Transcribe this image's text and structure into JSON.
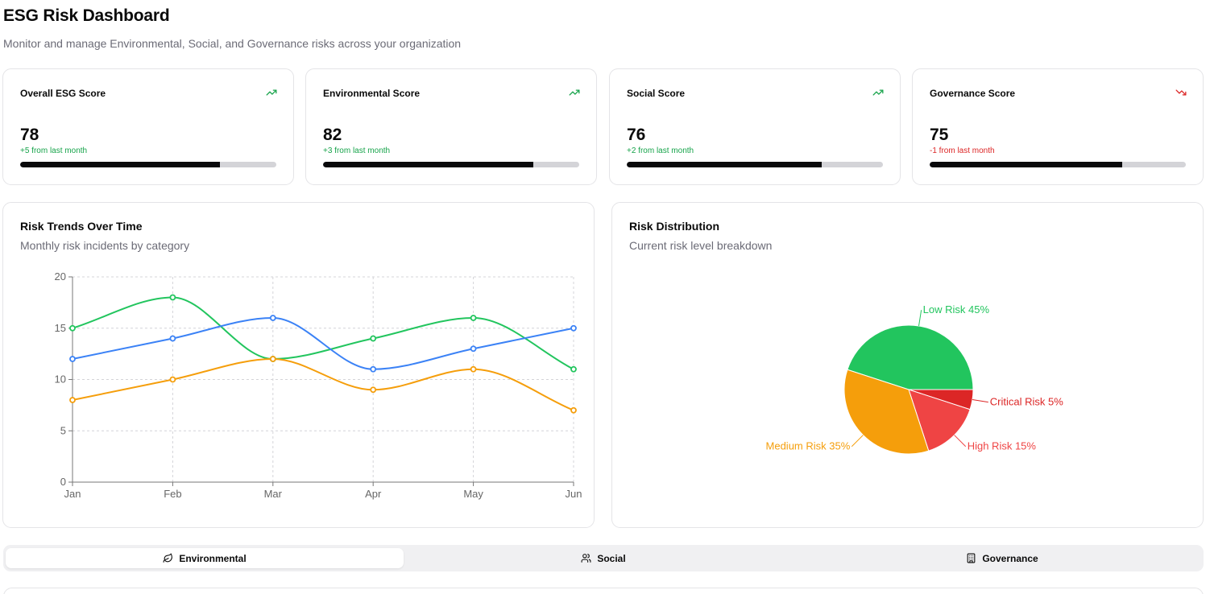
{
  "header": {
    "title": "ESG Risk Dashboard",
    "subtitle": "Monitor and manage Environmental, Social, and Governance risks across your organization"
  },
  "score_cards": [
    {
      "label": "Overall ESG Score",
      "value": "78",
      "change": "+5 from last month",
      "trend": "up",
      "progress": 0.78
    },
    {
      "label": "Environmental Score",
      "value": "82",
      "change": "+3 from last month",
      "trend": "up",
      "progress": 0.82
    },
    {
      "label": "Social Score",
      "value": "76",
      "change": "+2 from last month",
      "trend": "up",
      "progress": 0.76
    },
    {
      "label": "Governance Score",
      "value": "75",
      "change": "-1 from last month",
      "trend": "down",
      "progress": 0.75
    }
  ],
  "trends": {
    "title": "Risk Trends Over Time",
    "subtitle": "Monthly risk incidents by category"
  },
  "distribution": {
    "title": "Risk Distribution",
    "subtitle": "Current risk level breakdown"
  },
  "tabs": [
    {
      "label": "Environmental",
      "icon": "leaf-icon",
      "active": true
    },
    {
      "label": "Social",
      "icon": "users-icon",
      "active": false
    },
    {
      "label": "Governance",
      "icon": "building-icon",
      "active": false
    }
  ],
  "colors": {
    "green": "#22c55e",
    "blue": "#3b82f6",
    "orange": "#f59e0b",
    "red": "#ef4444",
    "dark_red": "#dc2626"
  },
  "chart_data": [
    {
      "type": "line",
      "x": [
        "Jan",
        "Feb",
        "Mar",
        "Apr",
        "May",
        "Jun"
      ],
      "ylim": [
        0,
        20
      ],
      "yticks": [
        0,
        5,
        10,
        15,
        20
      ],
      "grid": true,
      "series": [
        {
          "color": "#22c55e",
          "values": [
            15,
            18,
            12,
            14,
            16,
            11
          ]
        },
        {
          "color": "#3b82f6",
          "values": [
            12,
            14,
            16,
            11,
            13,
            15
          ]
        },
        {
          "color": "#f59e0b",
          "values": [
            8,
            10,
            12,
            9,
            11,
            7
          ]
        }
      ]
    },
    {
      "type": "pie",
      "slices": [
        {
          "label": "Low Risk",
          "value": 45,
          "color": "#22c55e",
          "text": "Low Risk 45%"
        },
        {
          "label": "Critical Risk",
          "value": 5,
          "color": "#dc2626",
          "text": "Critical Risk 5%"
        },
        {
          "label": "High Risk",
          "value": 15,
          "color": "#ef4444",
          "text": "High Risk 15%"
        },
        {
          "label": "Medium Risk",
          "value": 35,
          "color": "#f59e0b",
          "text": "Medium Risk 35%"
        }
      ]
    }
  ]
}
